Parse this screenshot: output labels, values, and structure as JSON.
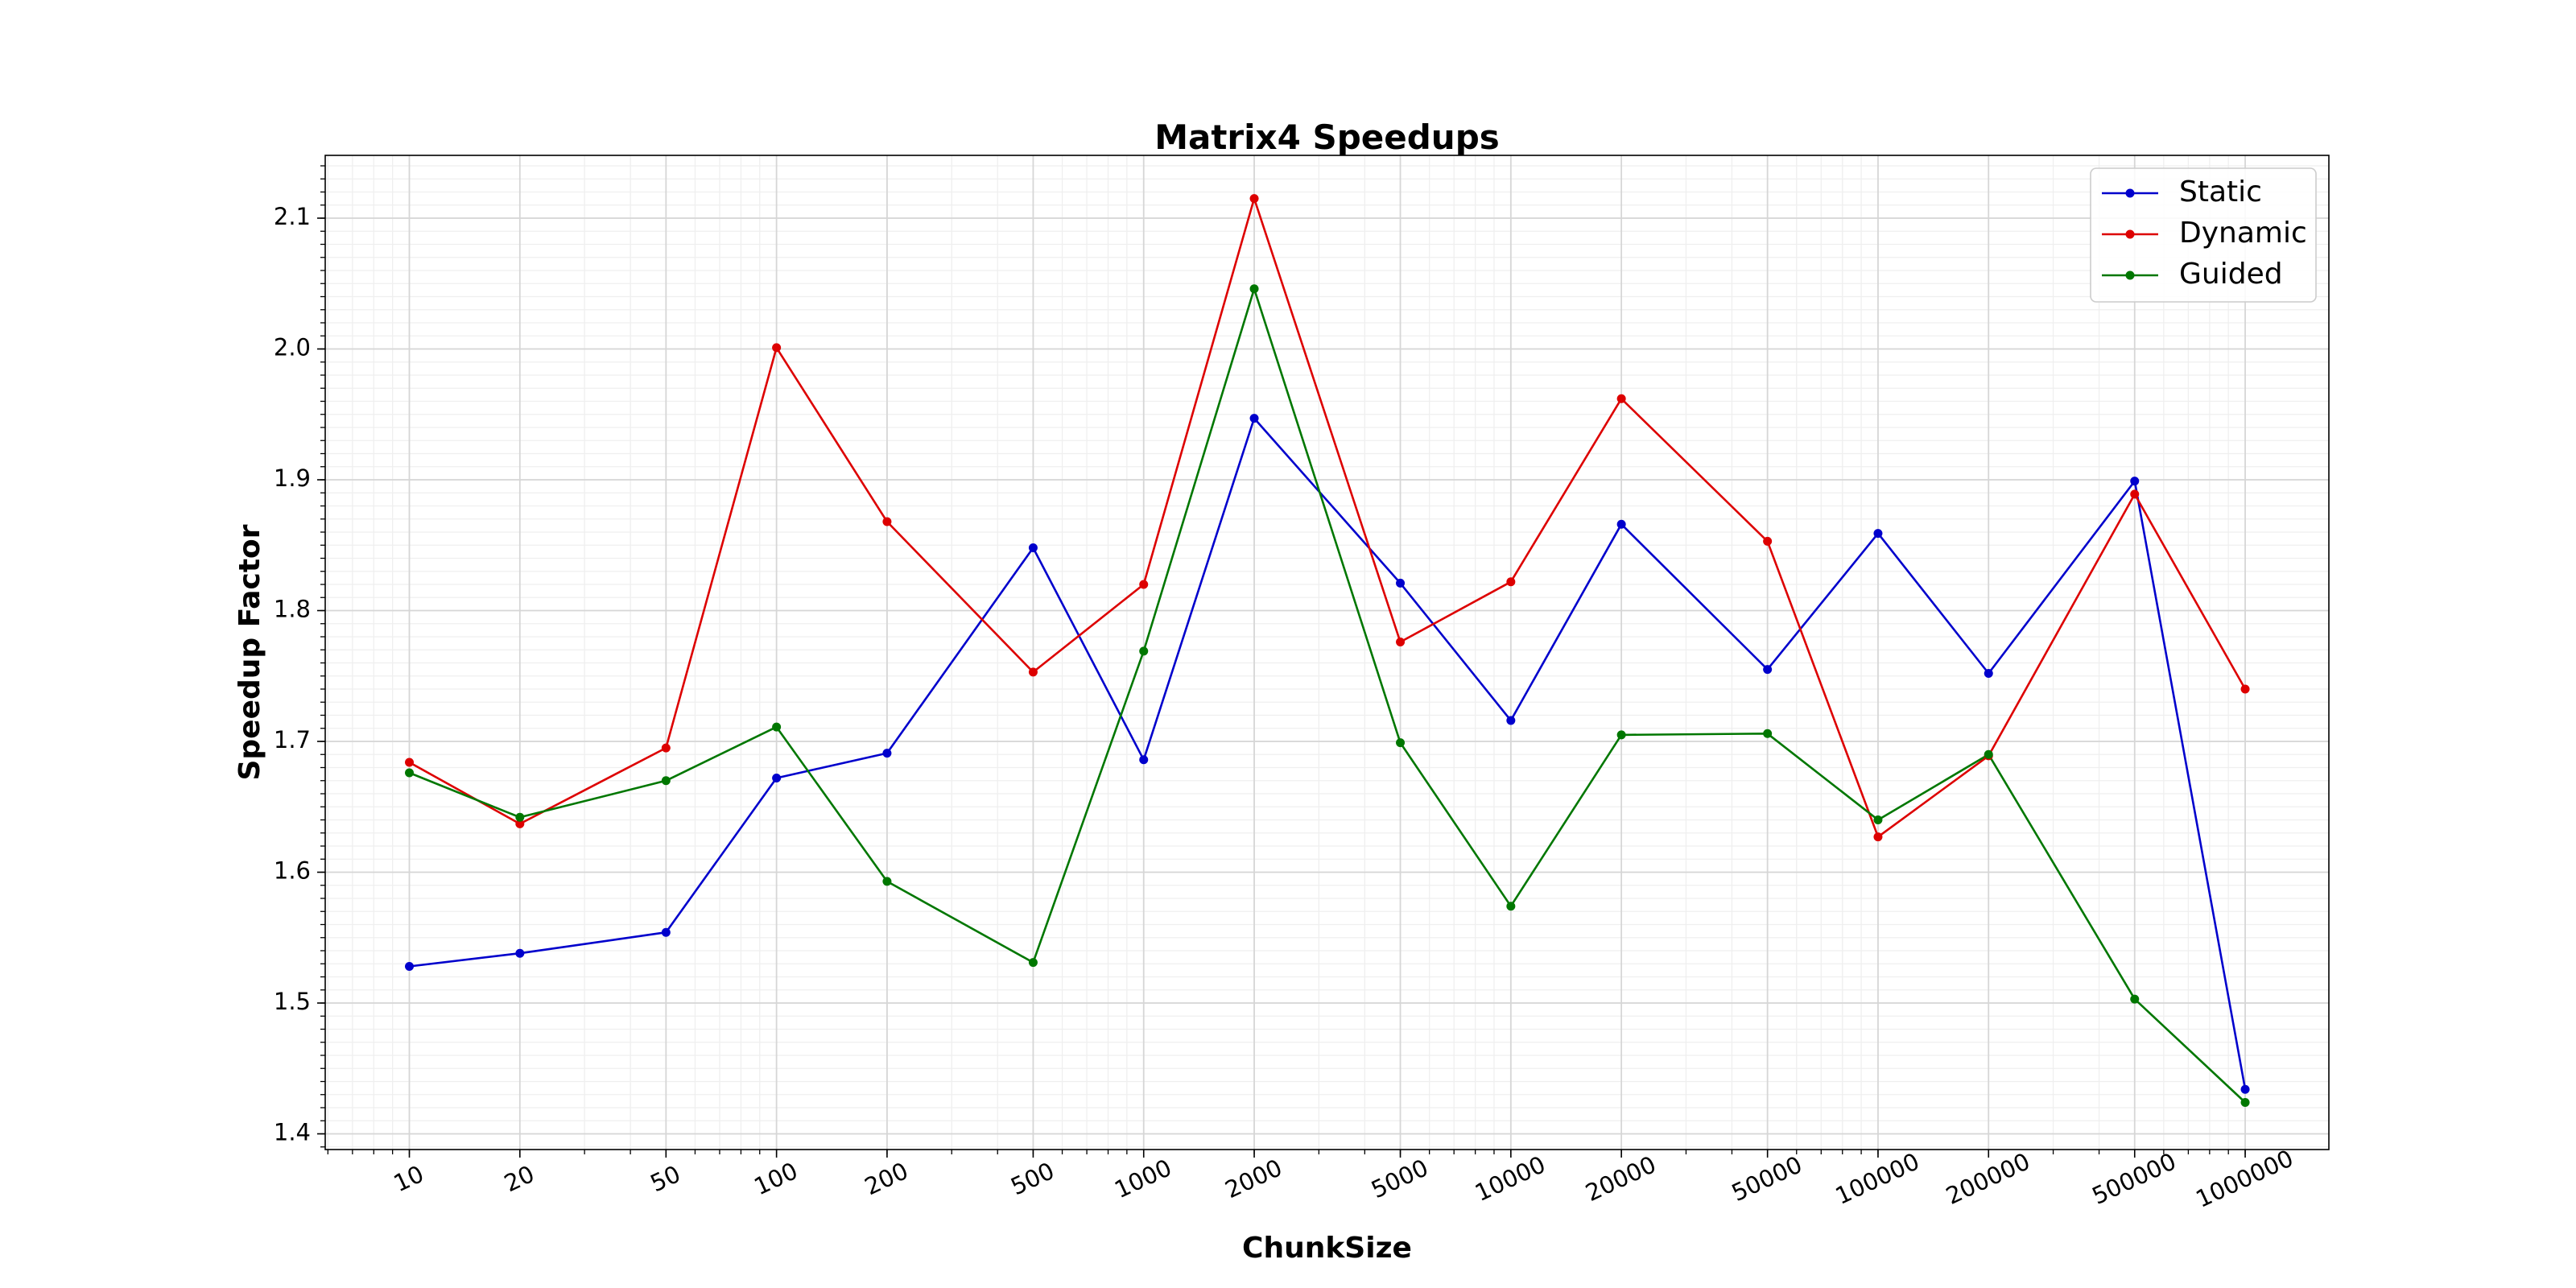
{
  "chart_data": {
    "type": "line",
    "title": "Matrix4 Speedups",
    "xlabel": "ChunkSize",
    "ylabel": "Speedup Factor",
    "x_scale": "log",
    "x": [
      10,
      20,
      50,
      100,
      200,
      500,
      1000,
      2000,
      5000,
      10000,
      20000,
      50000,
      100000,
      200000,
      500000,
      1000000
    ],
    "x_tick_labels": [
      "10",
      "20",
      "50",
      "100",
      "200",
      "500",
      "1000",
      "2000",
      "5000",
      "10000",
      "20000",
      "50000",
      "100000",
      "200000",
      "500000",
      "1000000"
    ],
    "y_ticks": [
      1.4,
      1.5,
      1.6,
      1.7,
      1.8,
      1.9,
      2.0,
      2.1
    ],
    "y_tick_labels": [
      "1.4",
      "1.5",
      "1.6",
      "1.7",
      "1.8",
      "1.9",
      "2.0",
      "2.1"
    ],
    "xlim": [
      5.9,
      1690000
    ],
    "ylim": [
      1.388,
      2.148
    ],
    "grid": true,
    "legend_position": "top-right",
    "series": [
      {
        "name": "Static",
        "color": "#0000cc",
        "values": [
          1.528,
          1.538,
          1.554,
          1.672,
          1.691,
          1.848,
          1.686,
          1.947,
          1.821,
          1.716,
          1.866,
          1.755,
          1.859,
          1.752,
          1.899,
          1.434
        ]
      },
      {
        "name": "Dynamic",
        "color": "#dd0000",
        "values": [
          1.684,
          1.637,
          1.695,
          2.001,
          1.868,
          1.753,
          1.82,
          2.115,
          1.776,
          1.822,
          1.962,
          1.853,
          1.627,
          1.689,
          1.889,
          1.74
        ]
      },
      {
        "name": "Guided",
        "color": "#007700",
        "values": [
          1.676,
          1.642,
          1.67,
          1.711,
          1.593,
          1.531,
          1.769,
          2.046,
          1.699,
          1.574,
          1.705,
          1.706,
          1.64,
          1.69,
          1.503,
          1.424
        ]
      }
    ]
  }
}
